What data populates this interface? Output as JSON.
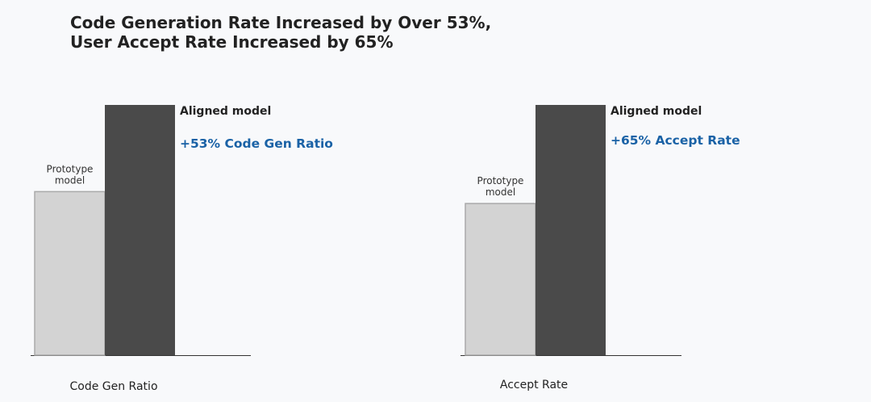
{
  "title": {
    "line1": "Code Generation Rate Increased by Over 53%,",
    "line2": "User Accept Rate Increased by 65%"
  },
  "colors": {
    "background": "#f8f9fb",
    "prototype_bar": "#d3d3d3",
    "prototype_edge": "#a9a9a9",
    "aligned_bar": "#4a4a4a",
    "annotation": "#1a62a6",
    "text": "#222222"
  },
  "chart_data": [
    {
      "type": "bar",
      "xlabel": "Code Gen Ratio",
      "categories": [
        "Prototype\nmodel",
        "Aligned model"
      ],
      "values": [
        1.0,
        1.53
      ],
      "annotation": "+53% Code Gen Ratio",
      "grid": false,
      "yaxis_visible": false
    },
    {
      "type": "bar",
      "xlabel": "Accept Rate",
      "categories": [
        "Prototype\nmodel",
        "Aligned model"
      ],
      "values": [
        1.0,
        1.65
      ],
      "annotation": "+65% Accept Rate",
      "grid": false,
      "yaxis_visible": false
    }
  ]
}
